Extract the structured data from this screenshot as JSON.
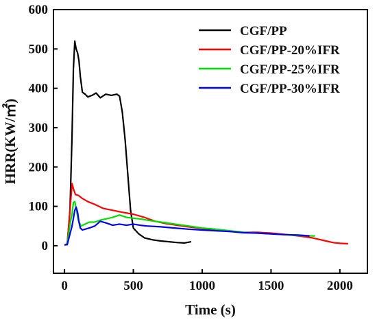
{
  "chart_data": {
    "type": "line",
    "xlabel": "Time (s)",
    "ylabel": "HRR(KW/㎡)",
    "xlim": [
      -80,
      2200
    ],
    "ylim": [
      -70,
      600
    ],
    "xticks": [
      0,
      500,
      1000,
      1500,
      2000
    ],
    "yticks": [
      0,
      100,
      200,
      300,
      400,
      500,
      600
    ],
    "grid": false,
    "legend_position": "top-right",
    "series": [
      {
        "name": "CGF/PP",
        "color": "#000000",
        "x": [
          0,
          20,
          40,
          55,
          65,
          75,
          85,
          95,
          105,
          115,
          130,
          150,
          170,
          200,
          230,
          260,
          300,
          340,
          380,
          400,
          420,
          440,
          460,
          480,
          500,
          540,
          580,
          640,
          700,
          760,
          820,
          870,
          920
        ],
        "y": [
          2,
          3,
          90,
          280,
          450,
          520,
          500,
          490,
          470,
          430,
          390,
          385,
          378,
          382,
          388,
          376,
          385,
          382,
          385,
          380,
          340,
          270,
          180,
          90,
          45,
          30,
          20,
          15,
          12,
          10,
          8,
          7,
          10
        ]
      },
      {
        "name": "CGF/PP-20%IFR",
        "color": "#ff0000",
        "x": [
          0,
          20,
          40,
          55,
          65,
          80,
          100,
          130,
          170,
          220,
          280,
          350,
          420,
          500,
          580,
          660,
          740,
          820,
          900,
          1000,
          1100,
          1200,
          1300,
          1400,
          1500,
          1600,
          1700,
          1800,
          1900,
          1950,
          2000,
          2060
        ],
        "y": [
          2,
          5,
          90,
          158,
          145,
          130,
          128,
          120,
          112,
          105,
          95,
          90,
          85,
          80,
          72,
          62,
          56,
          52,
          48,
          44,
          40,
          37,
          34,
          34,
          32,
          29,
          25,
          20,
          12,
          8,
          6,
          5
        ]
      },
      {
        "name": "CGF/PP-25%IFR",
        "color": "#00dd00",
        "x": [
          0,
          20,
          40,
          55,
          65,
          75,
          85,
          100,
          120,
          150,
          180,
          220,
          260,
          300,
          350,
          400,
          450,
          500,
          550,
          600,
          700,
          800,
          900,
          1000,
          1100,
          1200,
          1300,
          1400,
          1500,
          1600,
          1700,
          1800,
          1820
        ],
        "y": [
          2,
          5,
          55,
          80,
          110,
          112,
          95,
          65,
          50,
          55,
          60,
          60,
          65,
          68,
          72,
          78,
          72,
          70,
          68,
          65,
          60,
          55,
          50,
          45,
          42,
          38,
          34,
          32,
          30,
          28,
          26,
          25,
          25
        ]
      },
      {
        "name": "CGF/PP-30%IFR",
        "color": "#0000ee",
        "x": [
          0,
          20,
          40,
          55,
          65,
          75,
          85,
          95,
          105,
          115,
          130,
          150,
          180,
          220,
          260,
          300,
          350,
          400,
          450,
          500,
          550,
          600,
          700,
          800,
          900,
          1000,
          1100,
          1200,
          1300,
          1400,
          1500,
          1600,
          1700,
          1780
        ],
        "y": [
          2,
          3,
          30,
          50,
          70,
          90,
          98,
          85,
          60,
          45,
          40,
          42,
          45,
          50,
          62,
          58,
          52,
          55,
          52,
          55,
          52,
          50,
          48,
          45,
          42,
          40,
          38,
          36,
          33,
          32,
          30,
          28,
          27,
          25
        ]
      }
    ]
  }
}
